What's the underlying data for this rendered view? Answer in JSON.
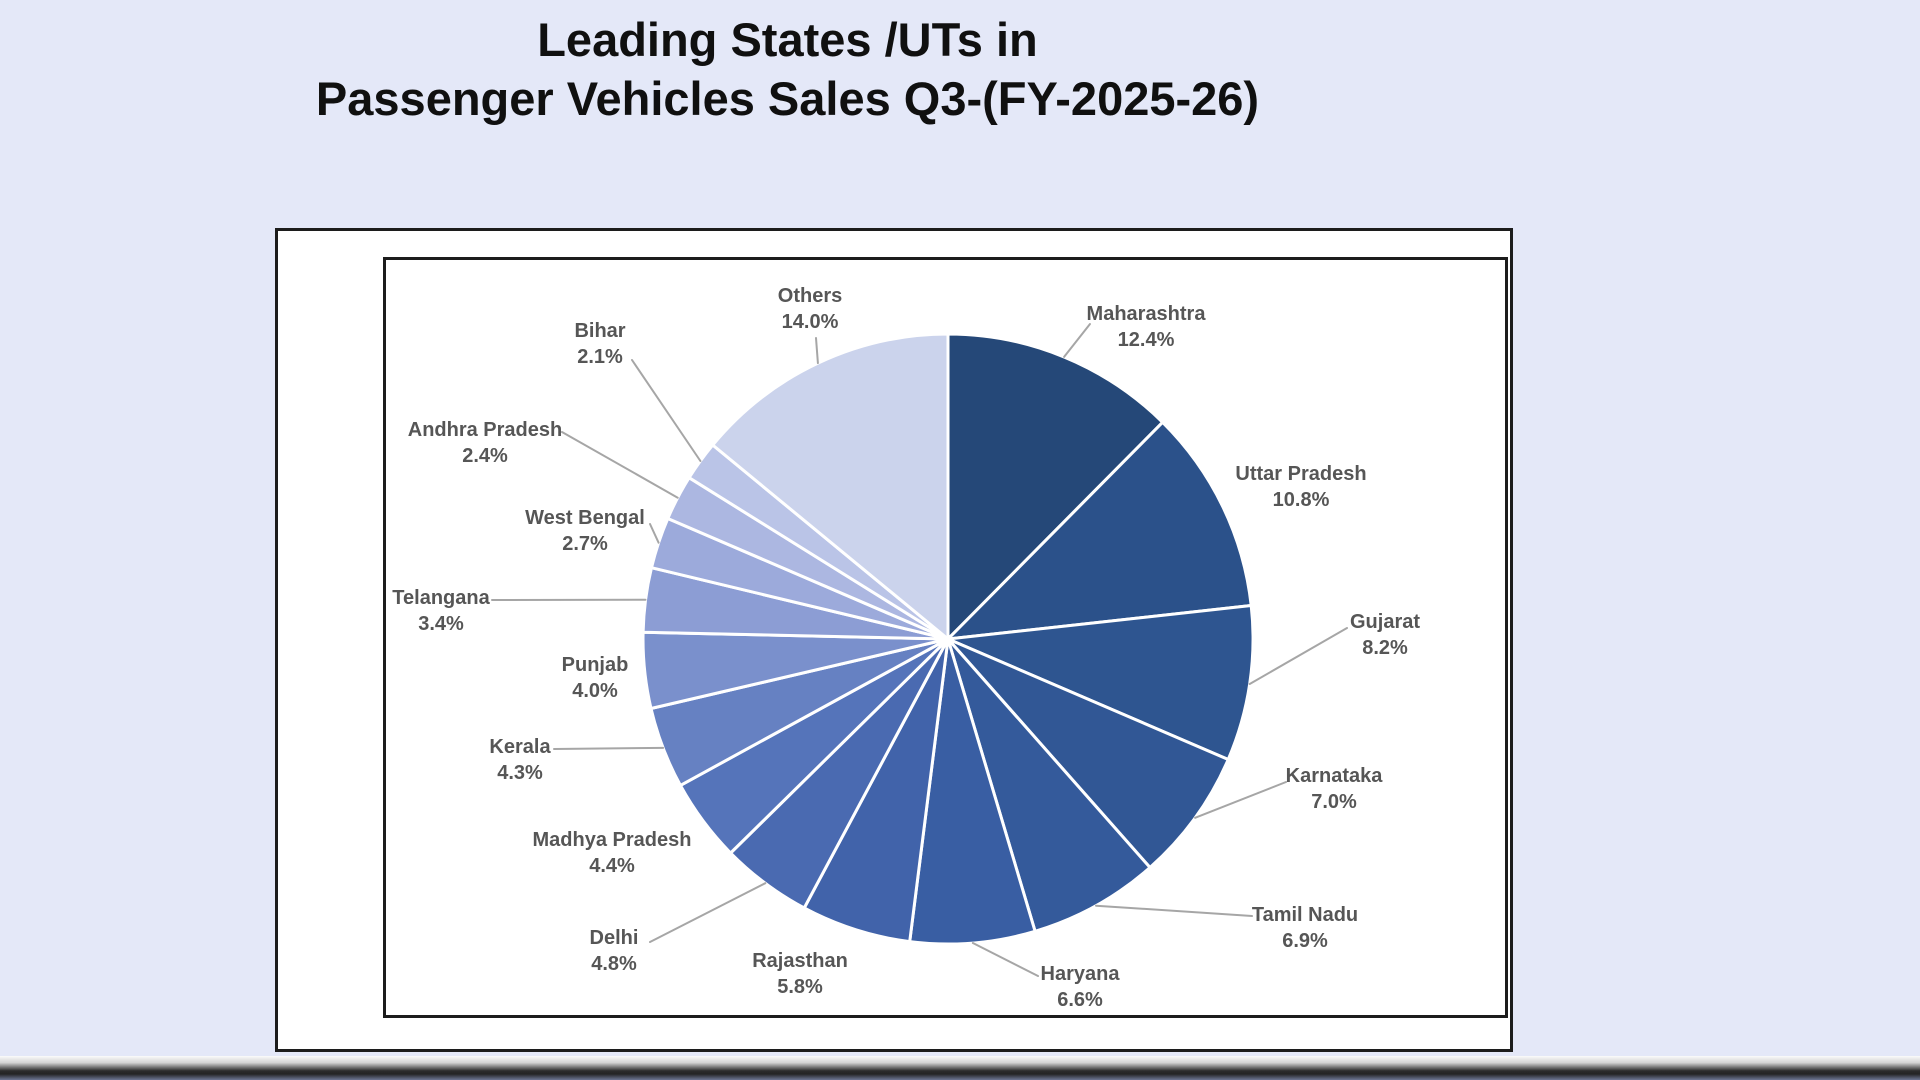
{
  "title": {
    "line1": "Leading States /UTs in",
    "line2": "Passenger Vehicles Sales Q3-(FY-2025-26)"
  },
  "chart_data": {
    "type": "pie",
    "title": "Leading States /UTs in Passenger Vehicles Sales Q3-(FY-2025-26)",
    "value_unit": "percent share",
    "start_angle_deg": 0,
    "direction": "clockwise",
    "legend": "none",
    "label_style": "outside two-line callout labels (name + percent) with gray leader lines",
    "slices": [
      {
        "label": "Maharashtra",
        "value": 12.4,
        "color": "#254878"
      },
      {
        "label": "Uttar Pradesh",
        "value": 10.8,
        "color": "#2B518A"
      },
      {
        "label": "Gujarat",
        "value": 8.2,
        "color": "#2E5590"
      },
      {
        "label": "Karnataka",
        "value": 7.0,
        "color": "#315795"
      },
      {
        "label": "Tamil Nadu",
        "value": 6.9,
        "color": "#345A9B"
      },
      {
        "label": "Haryana",
        "value": 6.6,
        "color": "#395EA3"
      },
      {
        "label": "Rajasthan",
        "value": 5.8,
        "color": "#4163AA"
      },
      {
        "label": "Delhi",
        "value": 4.8,
        "color": "#4A6AB1"
      },
      {
        "label": "Madhya Pradesh",
        "value": 4.4,
        "color": "#5574BA"
      },
      {
        "label": "Kerala",
        "value": 4.3,
        "color": "#6681C2"
      },
      {
        "label": "Punjab",
        "value": 4.0,
        "color": "#7A90CC"
      },
      {
        "label": "Telangana",
        "value": 3.4,
        "color": "#8C9DD4"
      },
      {
        "label": "West Bengal",
        "value": 2.7,
        "color": "#9CAADB"
      },
      {
        "label": "Andhra Pradesh",
        "value": 2.4,
        "color": "#ACB7E1"
      },
      {
        "label": "Bihar",
        "value": 2.1,
        "color": "#BAC4E7"
      },
      {
        "label": "Others",
        "value": 14.0,
        "color": "#CBD3EC"
      }
    ]
  },
  "colors": {
    "page_background": "#E4E8F8",
    "title_text": "#101010",
    "label_text": "#565656",
    "leader_line": "#A6A6A6",
    "slice_border": "#FFFFFF",
    "box_border": "#1C1C1C"
  }
}
